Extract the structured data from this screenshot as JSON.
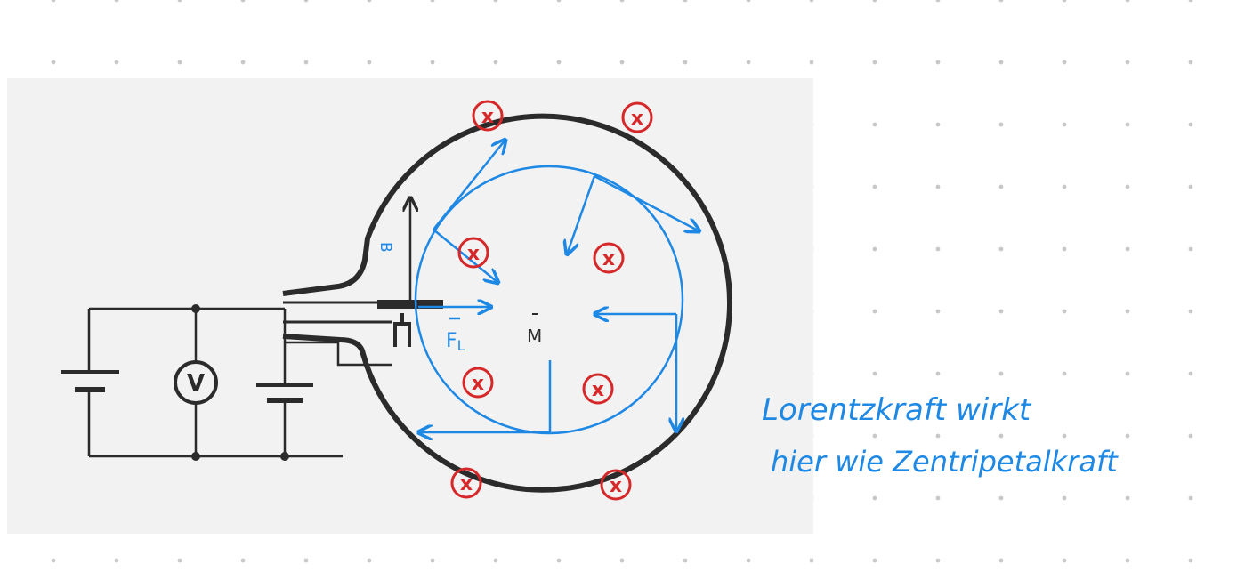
{
  "colors": {
    "paper": "#f2f2f2",
    "ink": "#2b2b2b",
    "blue": "#1e88e5",
    "red": "#d62828",
    "dot": "#c8c8c8"
  },
  "labels": {
    "voltmeter": "V",
    "center": "M",
    "force": "F",
    "force_sub": "L",
    "b_field": "B"
  },
  "field_marks": [
    "x",
    "x",
    "x",
    "x",
    "x",
    "x",
    "x",
    "x"
  ],
  "note": {
    "line1": "Lorentzkraft wirkt",
    "line2": "hier wie Zentripetalkraft"
  }
}
